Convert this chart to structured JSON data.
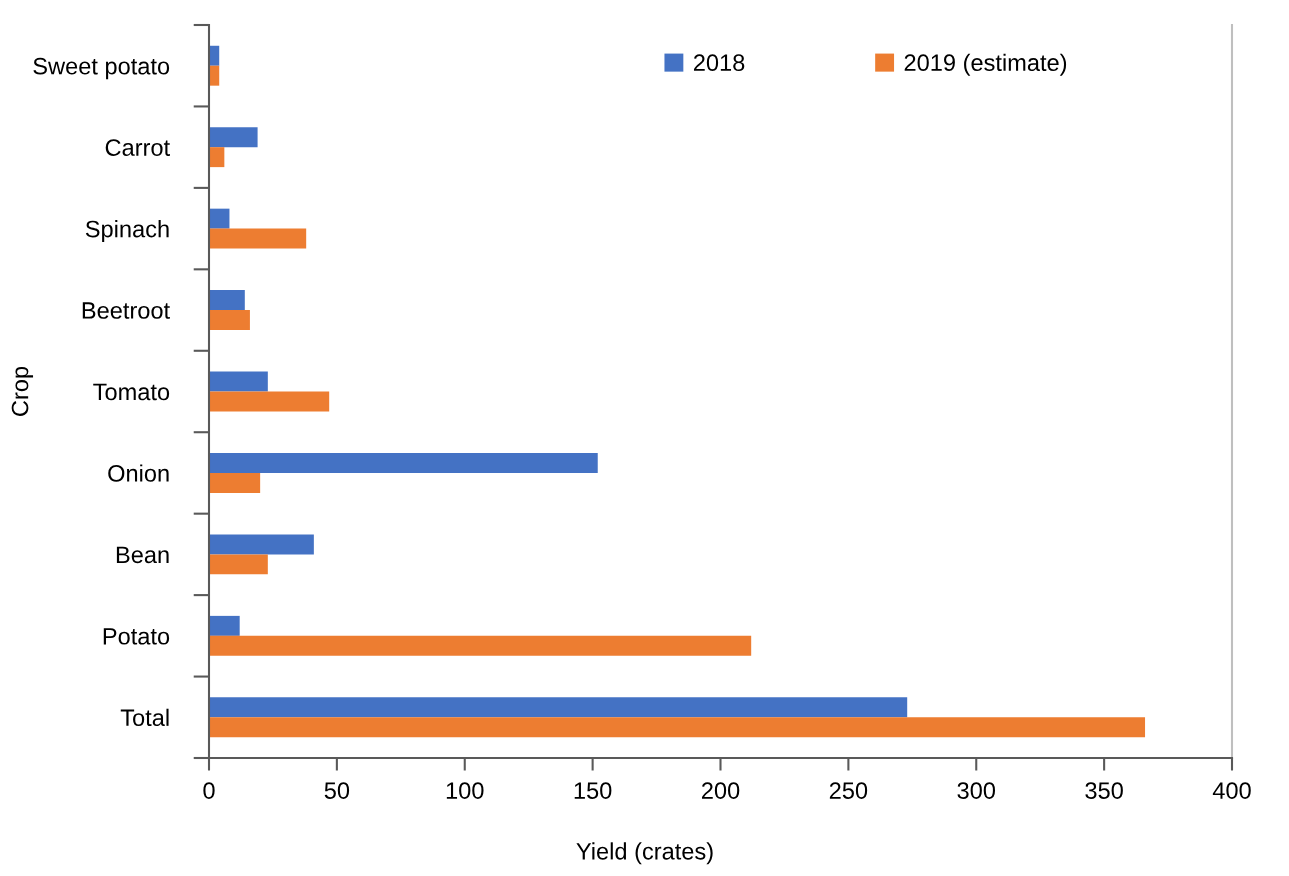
{
  "chart_data": {
    "type": "bar",
    "orientation": "horizontal",
    "xlabel": "Yield (crates)",
    "ylabel": "Crop",
    "categories": [
      "Sweet potato",
      "Carrot",
      "Spinach",
      "Beetroot",
      "Tomato",
      "Onion",
      "Bean",
      "Potato",
      "Total"
    ],
    "series": [
      {
        "name": "2018",
        "color": "#4472c4",
        "values": [
          4,
          19,
          8,
          14,
          23,
          152,
          41,
          12,
          273
        ]
      },
      {
        "name": "2019 (estimate)",
        "color": "#ed7d31",
        "values": [
          4,
          6,
          38,
          16,
          47,
          20,
          23,
          212,
          366
        ]
      }
    ],
    "xlim": [
      0,
      400
    ],
    "xticks": [
      0,
      50,
      100,
      150,
      200,
      250,
      300,
      350,
      400
    ],
    "grid": false,
    "legend": "top right"
  }
}
